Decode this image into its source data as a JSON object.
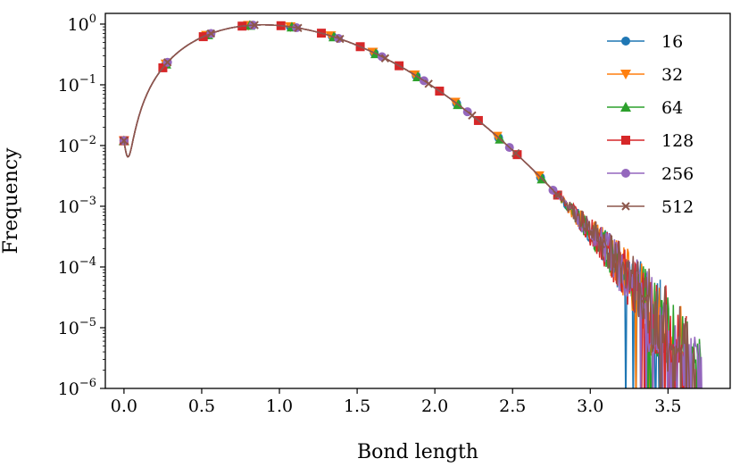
{
  "chart_data": {
    "type": "line",
    "xlabel": "Bond length",
    "ylabel": "Frequency",
    "yscale": "log",
    "xlim": [
      -0.12,
      3.9
    ],
    "ylim": [
      1e-06,
      1.5
    ],
    "x_ticks": [
      {
        "value": 0.0,
        "label": "0.0"
      },
      {
        "value": 0.5,
        "label": "0.5"
      },
      {
        "value": 1.0,
        "label": "1.0"
      },
      {
        "value": 1.5,
        "label": "1.5"
      },
      {
        "value": 2.0,
        "label": "2.0"
      },
      {
        "value": 2.5,
        "label": "2.5"
      },
      {
        "value": 3.0,
        "label": "3.0"
      },
      {
        "value": 3.5,
        "label": "3.5"
      }
    ],
    "y_ticks": [
      {
        "value": 1,
        "base": "10",
        "exp": "0"
      },
      {
        "value": 0.1,
        "base": "10",
        "exp": "−1"
      },
      {
        "value": 0.01,
        "base": "10",
        "exp": "−2"
      },
      {
        "value": 0.001,
        "base": "10",
        "exp": "−3"
      },
      {
        "value": 0.0001,
        "base": "10",
        "exp": "−4"
      },
      {
        "value": 1e-05,
        "base": "10",
        "exp": "−5"
      },
      {
        "value": 1e-06,
        "base": "10",
        "exp": "−6"
      }
    ],
    "legend": {
      "location": "top-right"
    },
    "series": [
      {
        "name": "16",
        "color": "#1f77b4",
        "marker": "circle",
        "markers_x": [
          0.0,
          0.27,
          0.54,
          0.8,
          1.07,
          1.34,
          1.61,
          1.88,
          2.14,
          2.41,
          2.68,
          2.95
        ],
        "tail_end": 3.47,
        "noise": [
          4,
          11
        ]
      },
      {
        "name": "32",
        "color": "#ff7f0e",
        "marker": "triangle-down",
        "markers_x": [
          0.0,
          0.27,
          0.53,
          0.8,
          1.07,
          1.33,
          1.6,
          1.87,
          2.13,
          2.4,
          2.67,
          2.93,
          3.2
        ],
        "tail_end": 3.62,
        "noise": [
          5,
          17
        ]
      },
      {
        "name": "64",
        "color": "#2ca02c",
        "marker": "triangle-up",
        "markers_x": [
          0.0,
          0.27,
          0.54,
          0.81,
          1.08,
          1.35,
          1.62,
          1.89,
          2.15,
          2.42,
          2.69,
          2.96
        ],
        "tail_end": 3.72,
        "noise": [
          6,
          23
        ]
      },
      {
        "name": "128",
        "color": "#d62728",
        "marker": "square",
        "markers_x": [
          0.0,
          0.25,
          0.51,
          0.76,
          1.01,
          1.27,
          1.52,
          1.77,
          2.03,
          2.28,
          2.53,
          2.79,
          3.04,
          3.29
        ],
        "tail_end": 3.62,
        "noise": [
          7,
          29
        ]
      },
      {
        "name": "256",
        "color": "#9467bd",
        "marker": "circle",
        "markers_x": [
          0.0,
          0.28,
          0.56,
          0.83,
          1.11,
          1.38,
          1.66,
          1.93,
          2.21,
          2.48,
          2.76,
          3.03
        ],
        "tail_end": 3.72,
        "noise": [
          8,
          31
        ]
      },
      {
        "name": "512",
        "color": "#8c564b",
        "marker": "x",
        "markers_x": [
          0.0,
          0.28,
          0.56,
          0.84,
          1.12,
          1.39,
          1.68,
          1.96,
          2.24,
          2.52,
          2.79,
          3.07,
          3.35
        ],
        "tail_end": 3.68,
        "noise": [
          9,
          37
        ]
      }
    ]
  }
}
